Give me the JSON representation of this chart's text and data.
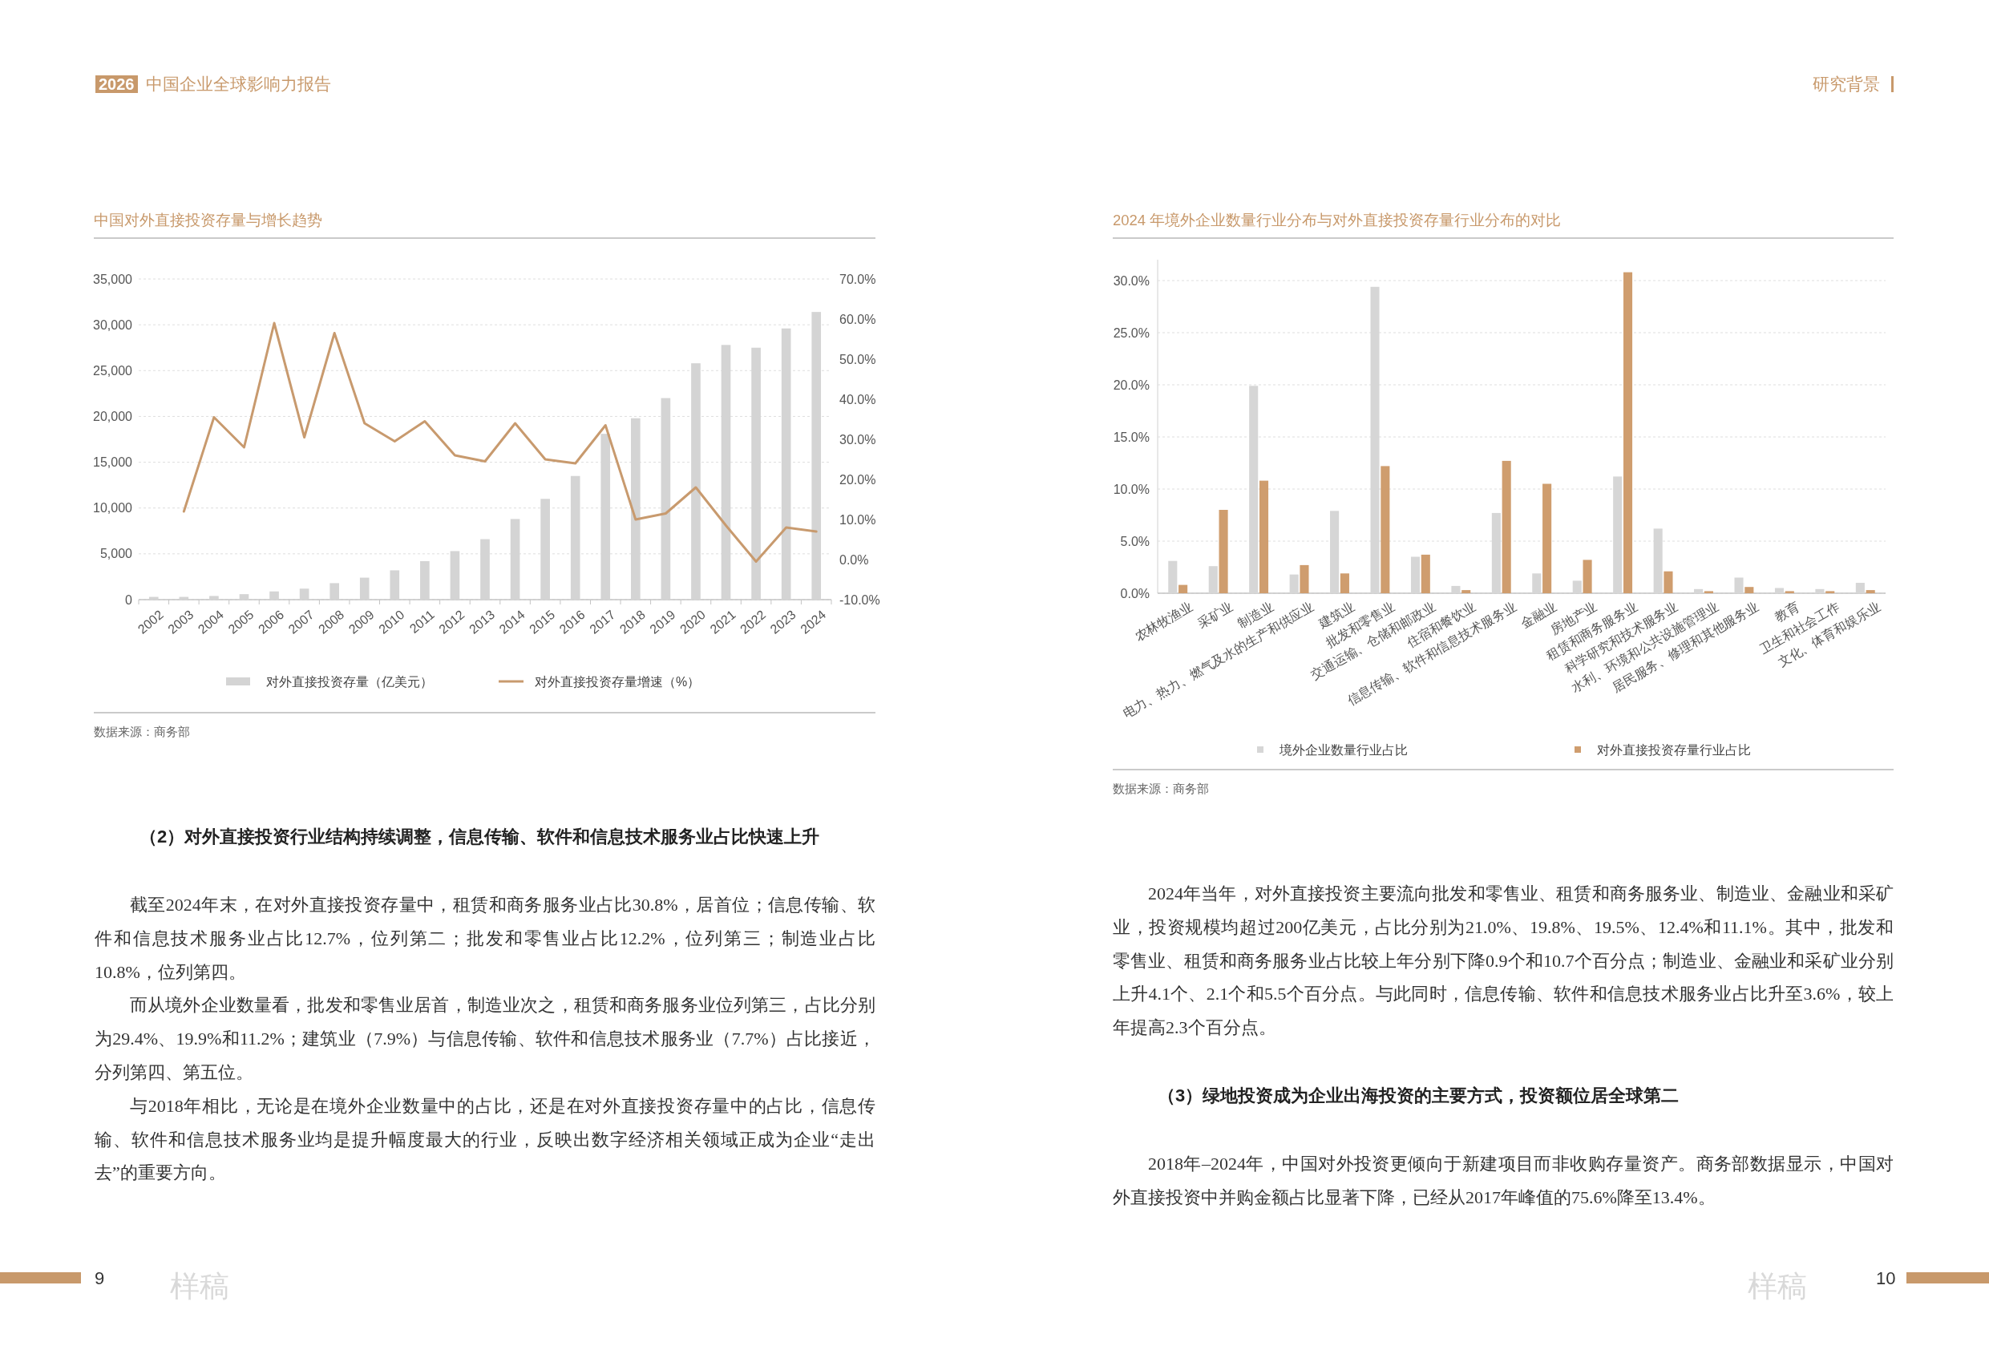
{
  "chart_data": [
    {
      "type": "other",
      "annotations": [
        "2026",
        "中国企业全球影响力报告"
      ]
    },
    {
      "type": "bar",
      "title": "中国对外直接投资存量与增长趋势",
      "categories": [
        "2002",
        "2003",
        "2004",
        "2005",
        "2006",
        "2007",
        "2008",
        "2009",
        "2010",
        "2011",
        "2012",
        "2013",
        "2014",
        "2015",
        "2016",
        "2017",
        "2018",
        "2019",
        "2020",
        "2021",
        "2022",
        "2023",
        "2024"
      ],
      "series": [
        {
          "name": "对外直接投资存量（亿美元）",
          "color": "#d4d4d4",
          "values": [
            300,
            300,
            400,
            600,
            900,
            1200,
            1800,
            2400,
            3200,
            4200,
            5300,
            6600,
            8800,
            11000,
            13500,
            18100,
            19800,
            22000,
            25800,
            27800,
            27500,
            29600,
            31400
          ]
        },
        {
          "name": "对外直接投资存量增速（%）",
          "type": "line",
          "axis": "y2",
          "color": "#c89a6e",
          "values": [
            null,
            12,
            35.5,
            28,
            59,
            30.5,
            56.5,
            34,
            29.5,
            34.5,
            26,
            24.5,
            34,
            25,
            24,
            33.5,
            10,
            11.5,
            18,
            8.5,
            -0.5,
            8,
            7
          ]
        }
      ],
      "ylim": [
        0,
        35000
      ],
      "yticks": [
        0,
        {
          "value": 5000,
          "label": "5,000"
        },
        {
          "value": 10000,
          "label": "10,000"
        },
        {
          "value": 15000,
          "label": "15,000"
        },
        {
          "value": 20000,
          "label": "20,000"
        },
        {
          "value": 25000,
          "label": "25,000"
        },
        {
          "value": 30000,
          "label": "30,000"
        },
        {
          "value": 35000,
          "label": "35,000"
        }
      ],
      "y2lim": [
        -10,
        70
      ],
      "y2ticks": [
        {
          "value": -10,
          "label": "-10.0%"
        },
        {
          "value": 0,
          "label": "0.0%"
        },
        {
          "value": 10,
          "label": "10.0%"
        },
        {
          "value": 20,
          "label": "20.0%"
        },
        {
          "value": 30,
          "label": "30.0%"
        },
        {
          "value": 40,
          "label": "40.0%"
        },
        {
          "value": 50,
          "label": "50.0%"
        },
        {
          "value": 60,
          "label": "60.0%"
        },
        {
          "value": 70,
          "label": "70.0%"
        }
      ],
      "grid": "y",
      "legend": "bottom",
      "annotations": [
        "数据来源：商务部"
      ]
    },
    {
      "type": "other",
      "title": "（2）对外直接投资行业结构持续调整，信息传输、软件和信息技术服务业占比快速上升",
      "annotations": [
        "截至2024年末，在对外直接投资存量中，租赁和商务服务业占比30.8%，居首位；信息传输、软件和信息技术服务业占比12.7%，位列第二；批发和零售业占比12.2%，位列第三；制造业占比10.8%，位列第四。",
        "而从境外企业数量看，批发和零售业居首，制造业次之，租赁和商务服务业位列第三，占比分别为29.4%、19.9%和11.2%；建筑业（7.9%）与信息传输、软件和信息技术服务业（7.7%）占比接近，分列第四、第五位。",
        "与2018年相比，无论是在境外企业数量中的占比，还是在对外直接投资存量中的占比，信息传输、软件和信息技术服务业均是提升幅度最大的行业，反映出数字经济相关领域正成为企业“走出去”的重要方向。"
      ]
    },
    {
      "type": "other",
      "annotations": [
        "9",
        "样稿"
      ]
    },
    {
      "type": "other",
      "annotations": [
        "研究背景"
      ]
    },
    {
      "type": "bar",
      "title": "2024 年境外企业数量行业分布与对外直接投资存量行业分布的对比",
      "categories": [
        "农林牧渔业",
        "采矿业",
        "制造业",
        "电力、热力、燃气及水的生产和供应业",
        "建筑业",
        "批发和零售业",
        "交通运输、仓储和邮政业",
        "住宿和餐饮业",
        "信息传输、软件和信息技术服务业",
        "金融业",
        "房地产业",
        "租赁和商务服务业",
        "科学研究和技术服务业",
        "水利、环境和公共设施管理业",
        "居民服务、修理和其他服务业",
        "教育",
        "卫生和社会工作",
        "文化、体育和娱乐业"
      ],
      "series": [
        {
          "name": "境外企业数量行业占比",
          "color": "#d6d6d6",
          "values": [
            3.1,
            2.6,
            19.9,
            1.8,
            7.9,
            29.4,
            3.5,
            0.7,
            7.7,
            1.9,
            1.2,
            11.2,
            6.2,
            0.4,
            1.5,
            0.5,
            0.4,
            1.0
          ]
        },
        {
          "name": "对外直接投资存量行业占比",
          "color": "#cf9d6e",
          "values": [
            0.8,
            8.0,
            10.8,
            2.7,
            1.9,
            12.2,
            3.7,
            0.3,
            12.7,
            10.5,
            3.2,
            30.8,
            2.1,
            0.2,
            0.6,
            0.2,
            0.2,
            0.3
          ]
        }
      ],
      "ylim": [
        0,
        32
      ],
      "yticks": [
        {
          "value": 0,
          "label": "0.0%"
        },
        {
          "value": 5,
          "label": "5.0%"
        },
        {
          "value": 10,
          "label": "10.0%"
        },
        {
          "value": 15,
          "label": "15.0%"
        },
        {
          "value": 20,
          "label": "20.0%"
        },
        {
          "value": 25,
          "label": "25.0%"
        },
        {
          "value": 30,
          "label": "30.0%"
        }
      ],
      "grid": "y",
      "legend": "bottom",
      "annotations": [
        "数据来源：商务部"
      ]
    },
    {
      "type": "other",
      "annotations": [
        "2024年当年，对外直接投资主要流向批发和零售业、租赁和商务服务业、制造业、金融业和采矿业，投资规模均超过200亿美元，占比分别为21.0%、19.8%、19.5%、12.4%和11.1%。其中，批发和零售业、租赁和商务服务业占比较上年分别下降0.9个和10.7个百分点；制造业、金融业和采矿业分别上升4.1个、2.1个和5.5个百分点。与此同时，信息传输、软件和信息技术服务业占比升至3.6%，较上年提高2.3个百分点。"
      ]
    },
    {
      "type": "other",
      "title": "（3）绿地投资成为企业出海投资的主要方式，投资额位居全球第二",
      "annotations": [
        "2018年–2024年，中国对外投资更倾向于新建项目而非收购存量资产。商务部数据显示，中国对外直接投资中并购金额占比显著下降，已经从2017年峰值的75.6%降至13.4%。"
      ]
    },
    {
      "type": "other",
      "annotations": [
        "样稿",
        "10"
      ]
    }
  ]
}
